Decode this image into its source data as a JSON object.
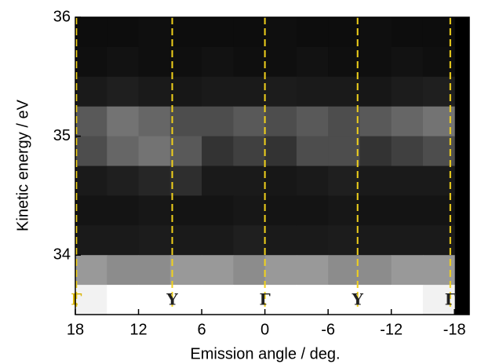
{
  "chart_data": {
    "type": "heatmap",
    "x_label": "Emission angle / deg.",
    "y_label": "Kinetic energy / eV",
    "xlim": [
      18,
      -19.4
    ],
    "ylim": [
      33.5,
      36
    ],
    "xticks": [
      18,
      12,
      6,
      0,
      -6,
      -12,
      -18
    ],
    "yticks": [
      34,
      35,
      36
    ],
    "colormap": "gray",
    "x": [
      16.5,
      13.5,
      10.5,
      7.5,
      4.5,
      1.5,
      -1.5,
      -4.5,
      -7.5,
      -10.5,
      -13.5,
      -16.5
    ],
    "y": [
      35.875,
      35.625,
      35.375,
      35.125,
      34.875,
      34.625,
      34.375,
      34.125,
      33.875,
      33.625
    ],
    "z": [
      [
        0.05,
        0.05,
        0.06,
        0.05,
        0.05,
        0.05,
        0.06,
        0.05,
        0.05,
        0.06,
        0.05,
        0.05
      ],
      [
        0.06,
        0.07,
        0.06,
        0.06,
        0.07,
        0.06,
        0.06,
        0.07,
        0.06,
        0.06,
        0.07,
        0.06
      ],
      [
        0.1,
        0.12,
        0.1,
        0.09,
        0.1,
        0.1,
        0.11,
        0.1,
        0.1,
        0.09,
        0.11,
        0.12
      ],
      [
        0.35,
        0.45,
        0.4,
        0.3,
        0.3,
        0.35,
        0.3,
        0.35,
        0.3,
        0.35,
        0.4,
        0.45
      ],
      [
        0.3,
        0.4,
        0.45,
        0.35,
        0.2,
        0.25,
        0.2,
        0.3,
        0.3,
        0.2,
        0.25,
        0.3
      ],
      [
        0.1,
        0.12,
        0.15,
        0.18,
        0.1,
        0.1,
        0.09,
        0.1,
        0.12,
        0.1,
        0.1,
        0.1
      ],
      [
        0.08,
        0.08,
        0.09,
        0.08,
        0.08,
        0.09,
        0.08,
        0.08,
        0.09,
        0.08,
        0.08,
        0.08
      ],
      [
        0.1,
        0.1,
        0.11,
        0.1,
        0.1,
        0.12,
        0.1,
        0.1,
        0.11,
        0.1,
        0.1,
        0.1
      ],
      [
        0.6,
        0.55,
        0.55,
        0.6,
        0.6,
        0.55,
        0.6,
        0.6,
        0.55,
        0.55,
        0.6,
        0.6
      ],
      [
        0.95,
        1,
        1,
        1,
        1,
        1,
        1,
        1,
        1,
        1,
        1,
        0.95
      ]
    ],
    "markers": [
      {
        "label": "Γ",
        "x": 17.9,
        "color": "#d9b400"
      },
      {
        "label": "Y",
        "x": 8.8,
        "color": "#222222"
      },
      {
        "label": "Γ",
        "x": 0,
        "color": "#222222"
      },
      {
        "label": "Y",
        "x": -8.8,
        "color": "#222222"
      },
      {
        "label": "Γ",
        "x": -17.6,
        "color": "#222222"
      }
    ],
    "marker_line_color": "#f2d21b"
  }
}
